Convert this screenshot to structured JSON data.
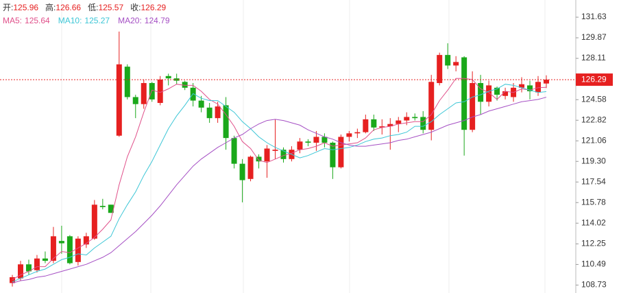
{
  "chart_data": {
    "type": "candlestick",
    "header": [
      {
        "label": "开:",
        "value": 125.96
      },
      {
        "label": "高:",
        "value": 126.66
      },
      {
        "label": "低:",
        "value": 125.57
      },
      {
        "label": "收:",
        "value": 126.29
      }
    ],
    "header_color": "#e62020",
    "up_color": "#e62020",
    "down_color": "#1aa81a",
    "ylim": [
      108.05,
      133.1
    ],
    "yticks": [
      131.63,
      129.87,
      128.11,
      124.58,
      122.82,
      121.06,
      {
        "value": 119.3,
        "label": "119.30"
      },
      117.54,
      115.78,
      114.02,
      112.25,
      110.49,
      108.73
    ],
    "last_price": 126.29,
    "open": [
      108.9,
      109.3,
      110.5,
      110.0,
      111.0,
      110.8,
      112.5,
      112.9,
      110.7,
      112.2,
      112.7,
      115.5,
      115.6,
      121.5,
      127.4,
      124.8,
      124.2,
      126.0,
      124.3,
      126.6,
      126.4,
      126.1,
      125.6,
      124.5,
      123.9,
      123.0,
      124.1,
      121.3,
      119.1,
      117.8,
      119.7,
      119.3,
      120.2,
      120.3,
      119.5,
      120.3,
      121.0,
      120.9,
      121.4,
      120.9,
      118.8,
      121.4,
      121.7,
      121.8,
      122.9,
      122.2,
      122.3,
      122.5,
      122.8,
      123.1,
      123.1,
      122.0,
      126.0,
      128.4,
      127.5,
      128.2,
      122.0,
      126.0,
      124.4,
      125.6,
      124.9,
      124.8,
      125.6,
      125.8,
      125.2,
      125.96
    ],
    "high": [
      109.6,
      110.8,
      110.9,
      111.3,
      111.6,
      113.7,
      113.8,
      113.0,
      112.9,
      113.2,
      116.0,
      116.1,
      115.6,
      130.4,
      127.6,
      125.0,
      126.3,
      126.1,
      126.6,
      126.8,
      126.8,
      126.2,
      126.0,
      124.9,
      124.3,
      124.4,
      124.8,
      121.5,
      119.5,
      119.8,
      119.9,
      120.7,
      122.9,
      120.5,
      120.6,
      121.3,
      121.2,
      121.9,
      121.7,
      121.0,
      121.6,
      121.9,
      122.1,
      123.3,
      123.3,
      122.9,
      123.0,
      123.1,
      123.5,
      123.4,
      123.6,
      126.7,
      128.6,
      129.4,
      128.3,
      128.3,
      127.0,
      126.7,
      126.2,
      125.7,
      125.6,
      126.0,
      126.5,
      126.2,
      126.6,
      126.66
    ],
    "low": [
      108.6,
      109.1,
      109.6,
      109.8,
      110.6,
      110.6,
      111.4,
      110.5,
      110.4,
      111.9,
      112.6,
      115.2,
      114.9,
      121.4,
      124.6,
      123.0,
      123.8,
      124.4,
      124.1,
      125.8,
      125.9,
      125.4,
      124.0,
      123.5,
      122.6,
      122.6,
      120.3,
      118.7,
      115.8,
      117.6,
      118.7,
      117.9,
      119.5,
      119.2,
      119.3,
      120.0,
      120.6,
      120.2,
      120.5,
      117.8,
      118.7,
      121.0,
      121.3,
      121.7,
      121.9,
      121.6,
      120.3,
      121.8,
      122.4,
      122.8,
      121.7,
      121.1,
      125.8,
      127.2,
      127.0,
      119.8,
      121.8,
      123.3,
      124.0,
      124.5,
      124.6,
      124.4,
      125.2,
      124.6,
      124.9,
      125.57
    ],
    "close": [
      109.4,
      110.5,
      109.9,
      111.0,
      110.8,
      112.9,
      112.3,
      110.6,
      112.7,
      112.9,
      115.6,
      115.4,
      114.9,
      127.6,
      124.8,
      124.2,
      126.0,
      124.6,
      126.3,
      126.4,
      126.2,
      125.6,
      124.5,
      123.9,
      123.0,
      124.0,
      121.3,
      119.1,
      117.7,
      119.7,
      119.3,
      120.4,
      120.3,
      119.5,
      120.3,
      121.0,
      120.9,
      121.4,
      120.9,
      118.8,
      121.4,
      121.7,
      121.8,
      122.9,
      122.2,
      122.3,
      122.5,
      122.8,
      123.1,
      123.0,
      122.0,
      126.1,
      128.4,
      127.5,
      127.8,
      122.0,
      126.0,
      124.4,
      125.8,
      125.0,
      125.3,
      125.6,
      125.9,
      125.3,
      126.1,
      126.29
    ],
    "series": [
      {
        "label": "MA5:",
        "last": 125.64,
        "color": "#e0508a",
        "values": [
          109.2,
          109.6,
          109.9,
          110.3,
          110.3,
          111.0,
          111.6,
          111.5,
          111.9,
          112.3,
          112.8,
          113.5,
          114.3,
          117.3,
          119.7,
          121.4,
          123.5,
          125.4,
          125.2,
          125.5,
          125.9,
          125.8,
          125.8,
          125.3,
          124.6,
          124.2,
          123.3,
          122.3,
          121.0,
          120.4,
          119.4,
          119.2,
          119.5,
          119.8,
          120.0,
          120.3,
          120.4,
          120.6,
          120.9,
          120.6,
          120.7,
          120.8,
          120.9,
          121.3,
          122.0,
          122.2,
          122.3,
          122.5,
          122.6,
          122.7,
          122.7,
          123.3,
          124.5,
          125.4,
          126.4,
          126.4,
          126.3,
          125.5,
          125.2,
          124.6,
          125.3,
          125.2,
          125.5,
          125.4,
          125.6,
          125.64
        ]
      },
      {
        "label": "MA10:",
        "last": 125.27,
        "color": "#3cc6d6",
        "values": [
          109.0,
          109.3,
          109.6,
          109.9,
          110.1,
          110.5,
          110.9,
          111.1,
          111.4,
          111.3,
          111.9,
          112.4,
          112.9,
          114.4,
          115.6,
          116.7,
          118.1,
          119.3,
          120.7,
          122.1,
          123.2,
          124.1,
          125.1,
          124.7,
          124.5,
          124.5,
          124.0,
          123.5,
          122.7,
          122.1,
          121.4,
          120.9,
          120.5,
          120.2,
          119.9,
          119.6,
          119.8,
          120.1,
          120.4,
          120.3,
          120.4,
          120.5,
          120.7,
          121.0,
          121.2,
          121.3,
          121.5,
          121.6,
          121.8,
          122.3,
          122.3,
          122.7,
          123.3,
          123.8,
          124.3,
          124.4,
          124.8,
          125.0,
          125.3,
          125.5,
          125.9,
          125.8,
          125.6,
          125.4,
          125.2,
          125.27
        ]
      },
      {
        "label": "MA20:",
        "last": 124.79,
        "color": "#a54fc4",
        "values": [
          108.9,
          109.1,
          109.2,
          109.4,
          109.5,
          109.7,
          109.9,
          110.1,
          110.3,
          110.5,
          110.8,
          111.1,
          111.5,
          112.1,
          112.7,
          113.3,
          114.0,
          114.7,
          115.5,
          116.4,
          117.3,
          118.1,
          118.9,
          119.5,
          120.0,
          120.5,
          120.9,
          121.3,
          121.6,
          122.1,
          122.5,
          122.8,
          122.9,
          122.8,
          122.6,
          122.4,
          122.0,
          121.7,
          121.4,
          121.2,
          120.9,
          120.7,
          120.6,
          120.6,
          120.7,
          120.8,
          120.9,
          121.1,
          121.2,
          121.4,
          121.6,
          121.8,
          122.1,
          122.4,
          122.6,
          122.8,
          123.1,
          123.3,
          123.6,
          123.8,
          124.0,
          124.2,
          124.4,
          124.5,
          124.6,
          124.79
        ]
      }
    ]
  }
}
